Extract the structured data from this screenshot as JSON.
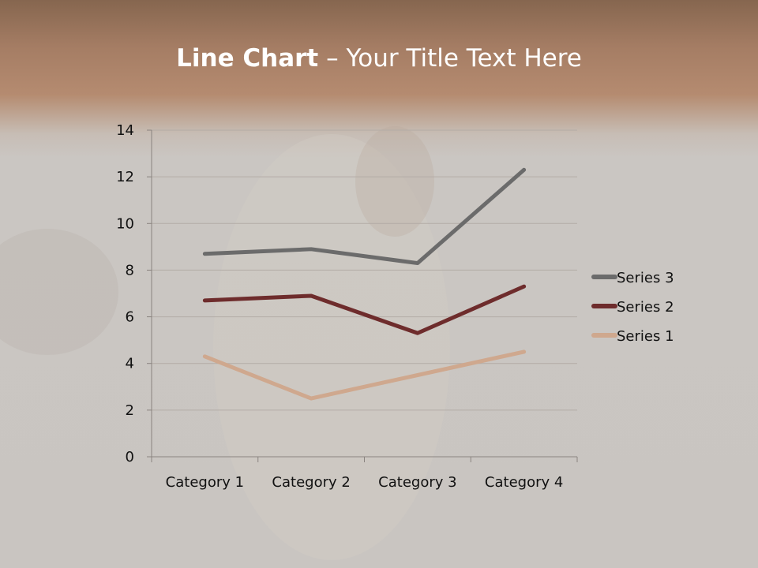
{
  "slide": {
    "title_bold": "Line Chart",
    "title_rest": " – Your Title Text Here"
  },
  "chart_data": {
    "type": "line",
    "title": "",
    "xlabel": "",
    "ylabel": "",
    "categories": [
      "Category 1",
      "Category 2",
      "Category 3",
      "Category 4"
    ],
    "ylim": [
      0,
      14
    ],
    "yticks": [
      "0",
      "2",
      "4",
      "6",
      "8",
      "10",
      "12",
      "14"
    ],
    "grid": true,
    "legend_position": "right",
    "series": [
      {
        "name": "Series 1",
        "values": [
          4.3,
          2.5,
          3.5,
          4.5
        ],
        "color": "#cfa88e"
      },
      {
        "name": "Series 2",
        "values": [
          6.7,
          6.9,
          5.3,
          7.3
        ],
        "color": "#6e2c2c"
      },
      {
        "name": "Series 3",
        "values": [
          8.7,
          8.9,
          8.3,
          12.3
        ],
        "color": "#6b6b6b"
      }
    ]
  }
}
